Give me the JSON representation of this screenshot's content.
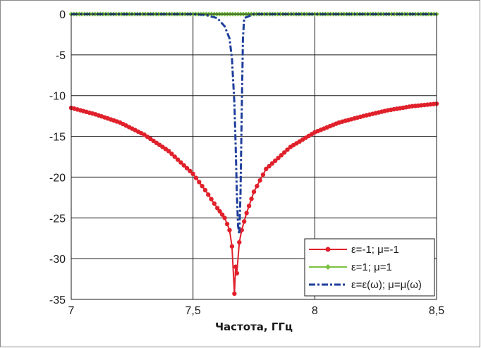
{
  "chart_data": {
    "type": "line",
    "xlabel": "Частота, ГГц",
    "ylabel": "",
    "title": "",
    "xlim": [
      7,
      8.5
    ],
    "ylim": [
      -35,
      0
    ],
    "xticks": [
      7,
      7.5,
      8,
      8.5
    ],
    "xtick_labels": [
      "7",
      "7,5",
      "8",
      "8,5"
    ],
    "yticks": [
      0,
      -5,
      -10,
      -15,
      -20,
      -25,
      -30,
      -35
    ],
    "ytick_labels": [
      "0",
      "-5",
      "-10",
      "-15",
      "-20",
      "-25",
      "-30",
      "-35"
    ],
    "grid": true,
    "legend_position": "bottom-right",
    "series": [
      {
        "name": "ε=-1; μ=-1",
        "color": "#e0202a",
        "marker": "circle",
        "x": [
          7.0,
          7.1,
          7.2,
          7.3,
          7.4,
          7.5,
          7.55,
          7.6,
          7.63,
          7.65,
          7.66,
          7.67,
          7.675,
          7.68,
          7.69,
          7.7,
          7.72,
          7.75,
          7.8,
          7.9,
          8.0,
          8.1,
          8.2,
          8.3,
          8.4,
          8.5
        ],
        "y": [
          -11.5,
          -12.3,
          -13.3,
          -14.8,
          -16.8,
          -19.6,
          -21.6,
          -23.8,
          -25.0,
          -26.5,
          -28.5,
          -34.3,
          -31.0,
          -31.8,
          -28.0,
          -26.5,
          -24.4,
          -21.8,
          -19.0,
          -16.3,
          -14.5,
          -13.3,
          -12.5,
          -11.8,
          -11.3,
          -11.0
        ]
      },
      {
        "name": "ε=1; μ=1",
        "color": "#7ac143",
        "marker": "diamond",
        "x": [
          7.0,
          7.25,
          7.5,
          7.75,
          8.0,
          8.25,
          8.5
        ],
        "y": [
          0,
          0,
          0,
          0,
          0,
          0,
          0
        ]
      },
      {
        "name": "ε=ε(ω); μ=μ(ω)",
        "color": "#1f3f9b",
        "marker": "none",
        "x": [
          7.0,
          7.5,
          7.55,
          7.6,
          7.63,
          7.65,
          7.66,
          7.67,
          7.675,
          7.68,
          7.685,
          7.69,
          7.695,
          7.7,
          7.705,
          7.71,
          7.75,
          8.0,
          8.5
        ],
        "y": [
          0,
          0,
          -0.1,
          -0.5,
          -1.5,
          -3.0,
          -5.5,
          -11.0,
          -16.0,
          -22.0,
          -26.0,
          -27.0,
          -22.0,
          -12.0,
          -3.0,
          -0.5,
          0,
          0,
          0
        ]
      }
    ]
  }
}
